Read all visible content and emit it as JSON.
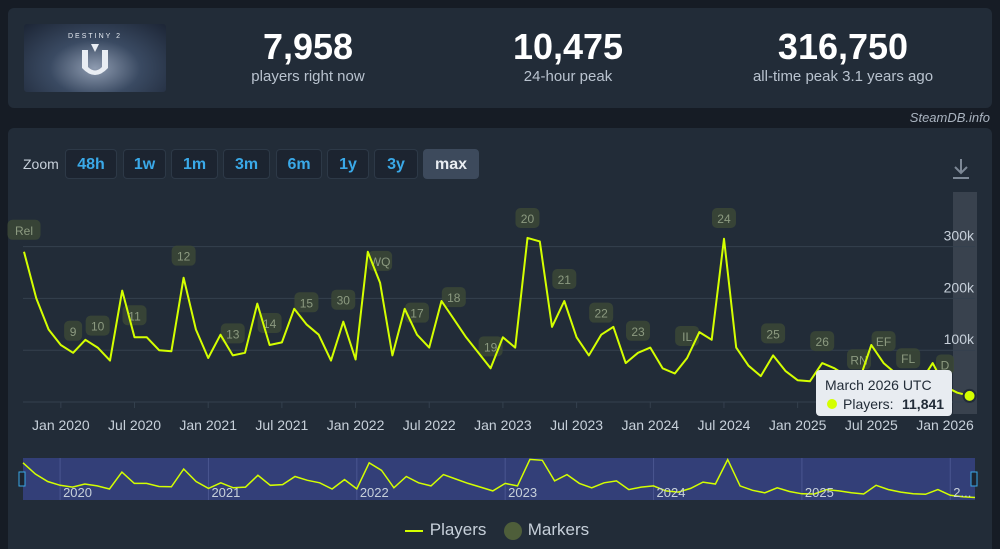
{
  "header": {
    "game_logo_text": "DESTINY 2",
    "stats": [
      {
        "value": "7,958",
        "label": "players right now"
      },
      {
        "value": "10,475",
        "label": "24-hour peak"
      },
      {
        "value": "316,750",
        "label": "all-time peak 3.1 years ago"
      }
    ]
  },
  "credit": "SteamDB.info",
  "zoom": {
    "label": "Zoom",
    "buttons": [
      "48h",
      "1w",
      "1m",
      "3m",
      "6m",
      "1y",
      "3y",
      "max"
    ],
    "active": "max"
  },
  "tooltip": {
    "title": "March 2026 UTC",
    "series": "Players:",
    "value": "11,841"
  },
  "legend": {
    "players": "Players",
    "markers": "Markers"
  },
  "colors": {
    "line": "#d4ff00",
    "marker": "#4e5e3a",
    "background": "#222c38",
    "active_button": "#3d4a5c",
    "button_text": "#3aa9e8"
  },
  "chart_data": {
    "type": "line",
    "series": [
      {
        "name": "Players",
        "points": [
          [
            "2019-10",
            290000
          ],
          [
            "2019-11",
            200000
          ],
          [
            "2019-12",
            140000
          ],
          [
            "2020-01",
            110000
          ],
          [
            "2020-02",
            95000
          ],
          [
            "2020-03",
            120000
          ],
          [
            "2020-04",
            105000
          ],
          [
            "2020-05",
            80000
          ],
          [
            "2020-06",
            215000
          ],
          [
            "2020-07",
            125000
          ],
          [
            "2020-08",
            125000
          ],
          [
            "2020-09",
            100000
          ],
          [
            "2020-10",
            98000
          ],
          [
            "2020-11",
            240000
          ],
          [
            "2020-12",
            140000
          ],
          [
            "2021-01",
            85000
          ],
          [
            "2021-02",
            130000
          ],
          [
            "2021-03",
            90000
          ],
          [
            "2021-04",
            95000
          ],
          [
            "2021-05",
            190000
          ],
          [
            "2021-06",
            110000
          ],
          [
            "2021-07",
            115000
          ],
          [
            "2021-08",
            180000
          ],
          [
            "2021-09",
            150000
          ],
          [
            "2021-10",
            130000
          ],
          [
            "2021-11",
            80000
          ],
          [
            "2021-12",
            155000
          ],
          [
            "2022-01",
            82000
          ],
          [
            "2022-02",
            290000
          ],
          [
            "2022-03",
            230000
          ],
          [
            "2022-04",
            90000
          ],
          [
            "2022-05",
            180000
          ],
          [
            "2022-06",
            130000
          ],
          [
            "2022-07",
            105000
          ],
          [
            "2022-08",
            195000
          ],
          [
            "2022-09",
            160000
          ],
          [
            "2022-10",
            125000
          ],
          [
            "2022-11",
            95000
          ],
          [
            "2022-12",
            65000
          ],
          [
            "2023-01",
            125000
          ],
          [
            "2023-02",
            105000
          ],
          [
            "2023-03",
            316750
          ],
          [
            "2023-04",
            310000
          ],
          [
            "2023-05",
            145000
          ],
          [
            "2023-06",
            195000
          ],
          [
            "2023-07",
            125000
          ],
          [
            "2023-08",
            90000
          ],
          [
            "2023-09",
            130000
          ],
          [
            "2023-10",
            145000
          ],
          [
            "2023-11",
            75000
          ],
          [
            "2023-12",
            95000
          ],
          [
            "2024-01",
            105000
          ],
          [
            "2024-02",
            65000
          ],
          [
            "2024-03",
            55000
          ],
          [
            "2024-04",
            85000
          ],
          [
            "2024-05",
            135000
          ],
          [
            "2024-06",
            120000
          ],
          [
            "2024-07",
            315000
          ],
          [
            "2024-08",
            105000
          ],
          [
            "2024-09",
            70000
          ],
          [
            "2024-10",
            50000
          ],
          [
            "2024-11",
            90000
          ],
          [
            "2024-12",
            60000
          ],
          [
            "2025-01",
            42000
          ],
          [
            "2025-02",
            40000
          ],
          [
            "2025-03",
            75000
          ],
          [
            "2025-04",
            65000
          ],
          [
            "2025-05",
            50000
          ],
          [
            "2025-06",
            40000
          ],
          [
            "2025-07",
            110000
          ],
          [
            "2025-08",
            75000
          ],
          [
            "2025-09",
            55000
          ],
          [
            "2025-10",
            42000
          ],
          [
            "2025-11",
            38000
          ],
          [
            "2025-12",
            75000
          ],
          [
            "2026-01",
            30000
          ],
          [
            "2026-02",
            18000
          ],
          [
            "2026-03",
            11841
          ]
        ]
      }
    ],
    "markers": [
      [
        "2019-10",
        "Rel"
      ],
      [
        "2020-02",
        "9"
      ],
      [
        "2020-04",
        "10"
      ],
      [
        "2020-07",
        "11"
      ],
      [
        "2020-11",
        "12"
      ],
      [
        "2021-03",
        "13"
      ],
      [
        "2021-06",
        "14"
      ],
      [
        "2021-09",
        "15"
      ],
      [
        "2021-12",
        "30"
      ],
      [
        "2022-03",
        "WQ"
      ],
      [
        "2022-06",
        "17"
      ],
      [
        "2022-09",
        "18"
      ],
      [
        "2022-12",
        "19"
      ],
      [
        "2023-03",
        "20"
      ],
      [
        "2023-06",
        "21"
      ],
      [
        "2023-09",
        "22"
      ],
      [
        "2023-12",
        "23"
      ],
      [
        "2024-04",
        "IL"
      ],
      [
        "2024-07",
        "24"
      ],
      [
        "2024-11",
        "25"
      ],
      [
        "2025-03",
        "26"
      ],
      [
        "2025-06",
        "RN"
      ],
      [
        "2025-08",
        "EF"
      ],
      [
        "2025-10",
        "FL"
      ],
      [
        "2026-01",
        "D"
      ]
    ],
    "x_tick_labels": [
      "Jan 2020",
      "Jul 2020",
      "Jan 2021",
      "Jul 2021",
      "Jan 2022",
      "Jul 2022",
      "Jan 2023",
      "Jul 2023",
      "Jan 2024",
      "Jul 2024",
      "Jan 2025",
      "Jul 2025",
      "Jan 2026"
    ],
    "y_tick_labels": [
      "100k",
      "200k",
      "300k"
    ],
    "ylim": [
      0,
      320000
    ],
    "navigator_labels": [
      "2020",
      "2021",
      "2022",
      "2023",
      "2024",
      "2025",
      "2..."
    ],
    "grid": true,
    "legend_position": "bottom-center"
  }
}
